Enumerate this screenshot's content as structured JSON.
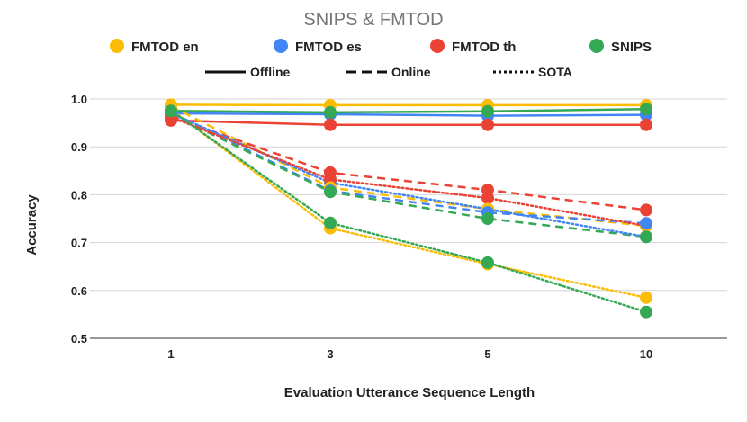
{
  "chart_data": {
    "type": "line",
    "title": "SNIPS & FMTOD",
    "xlabel": "Evaluation Utterance Sequence Length",
    "ylabel": "Accuracy",
    "categories": [
      "1",
      "3",
      "5",
      "10"
    ],
    "ylim": [
      0.5,
      1.0
    ],
    "yticks": [
      "0.5",
      "0.6",
      "0.7",
      "0.8",
      "0.9",
      "1.0"
    ],
    "grid": true,
    "legend_position": "top",
    "datasets": [
      {
        "name": "FMTOD en",
        "color": "#fbbc04"
      },
      {
        "name": "FMTOD es",
        "color": "#4285f4"
      },
      {
        "name": "FMTOD th",
        "color": "#ea4335"
      },
      {
        "name": "SNIPS",
        "color": "#34a853"
      }
    ],
    "line_styles": [
      {
        "name": "Offline",
        "style": "solid"
      },
      {
        "name": "Online",
        "style": "dashed"
      },
      {
        "name": "SOTA",
        "style": "dotted"
      }
    ],
    "series": [
      {
        "dataset": "FMTOD en",
        "style": "solid",
        "color": "#fbbc04",
        "values": [
          0.988,
          0.987,
          0.987,
          0.987
        ]
      },
      {
        "dataset": "FMTOD es",
        "style": "solid",
        "color": "#4285f4",
        "values": [
          0.97,
          0.968,
          0.965,
          0.967
        ]
      },
      {
        "dataset": "FMTOD th",
        "style": "solid",
        "color": "#ea4335",
        "values": [
          0.955,
          0.946,
          0.946,
          0.946
        ]
      },
      {
        "dataset": "SNIPS",
        "style": "solid",
        "color": "#34a853",
        "values": [
          0.975,
          0.972,
          0.974,
          0.979
        ]
      },
      {
        "dataset": "FMTOD en",
        "style": "dashed",
        "color": "#fbbc04",
        "values": [
          0.985,
          0.815,
          0.77,
          0.735
        ]
      },
      {
        "dataset": "FMTOD es",
        "style": "dashed",
        "color": "#4285f4",
        "values": [
          0.972,
          0.808,
          0.763,
          0.74
        ]
      },
      {
        "dataset": "FMTOD th",
        "style": "dashed",
        "color": "#ea4335",
        "values": [
          0.963,
          0.846,
          0.81,
          0.768
        ]
      },
      {
        "dataset": "SNIPS",
        "style": "dashed",
        "color": "#34a853",
        "values": [
          0.968,
          0.806,
          0.75,
          0.712
        ]
      },
      {
        "dataset": "FMTOD en",
        "style": "dotted",
        "color": "#fbbc04",
        "values": [
          0.978,
          0.73,
          0.655,
          0.585
        ]
      },
      {
        "dataset": "FMTOD es",
        "style": "dotted",
        "color": "#4285f4",
        "values": [
          0.97,
          0.825,
          0.77,
          0.712
        ]
      },
      {
        "dataset": "FMTOD th",
        "style": "dotted",
        "color": "#ea4335",
        "values": [
          0.962,
          0.832,
          0.793,
          0.735
        ]
      },
      {
        "dataset": "SNIPS",
        "style": "dotted",
        "color": "#34a853",
        "values": [
          0.976,
          0.741,
          0.658,
          0.555
        ]
      }
    ]
  }
}
